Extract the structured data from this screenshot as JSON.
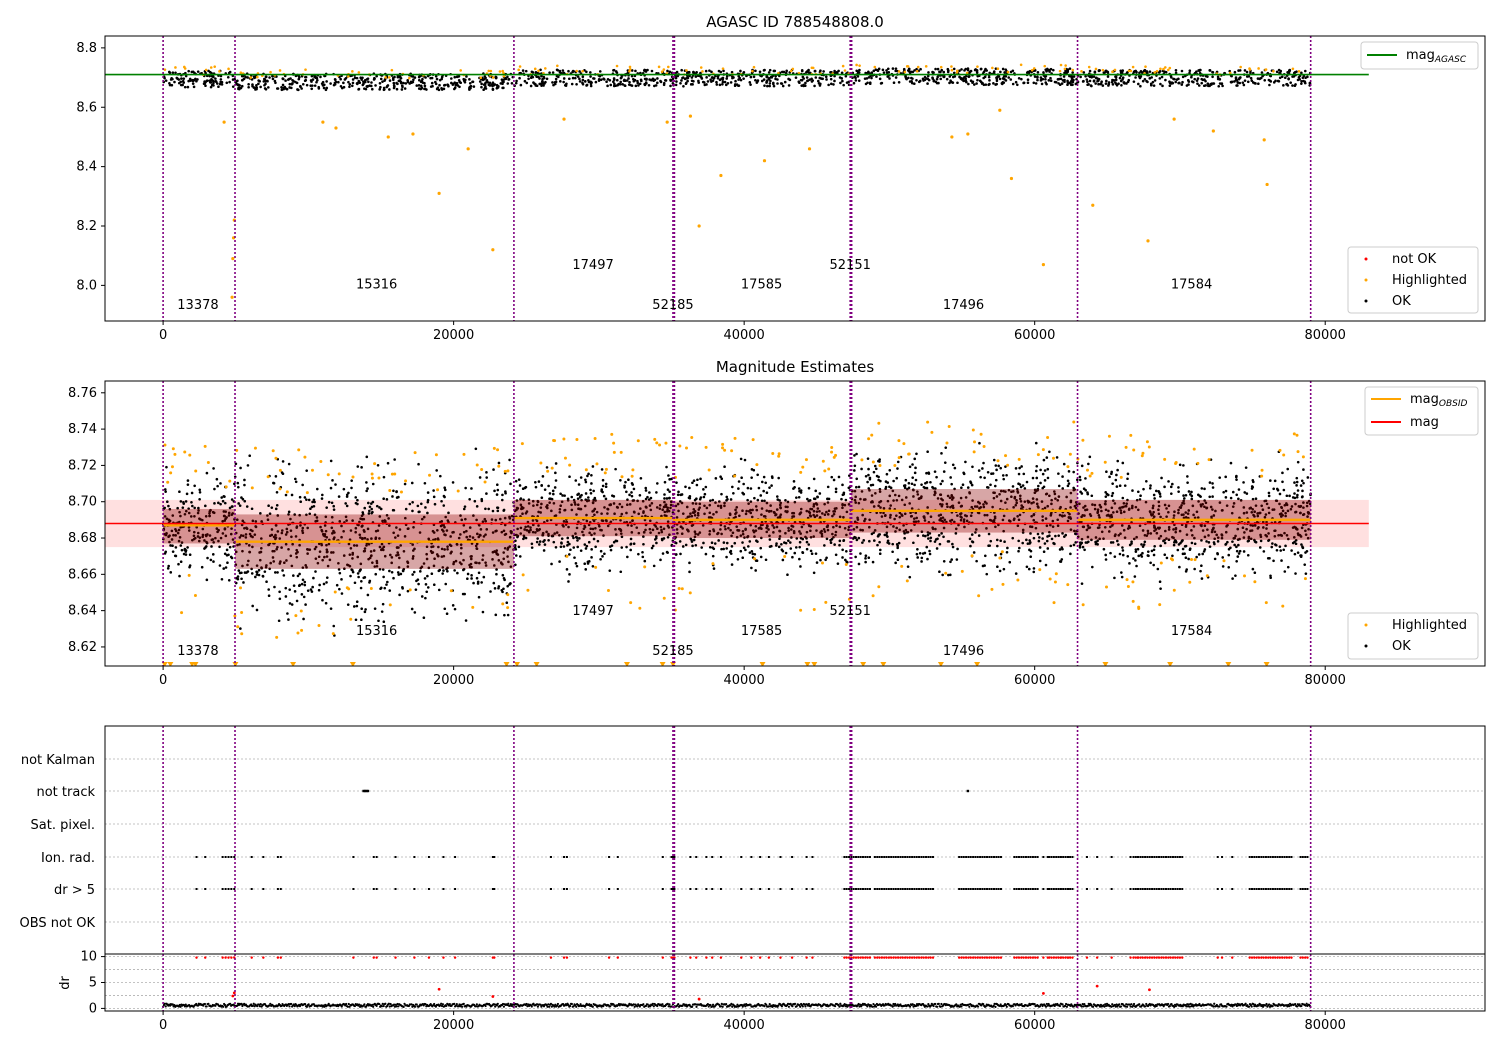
{
  "chart_data": [
    {
      "type": "scatter",
      "title": "AGASC ID 788548808.0",
      "xlim": [
        -4000,
        91000
      ],
      "ylim": [
        7.88,
        8.84
      ],
      "xticks": [
        0,
        20000,
        40000,
        60000,
        80000
      ],
      "xtick_labels": [
        "0",
        "20000",
        "40000",
        "60000",
        "80000"
      ],
      "yticks": [
        8.0,
        8.2,
        8.4,
        8.6,
        8.8
      ],
      "ytick_labels": [
        "8.0",
        "8.2",
        "8.4",
        "8.6",
        "8.8"
      ],
      "reference_line": {
        "name": "mag",
        "subscript": "AGASC",
        "y": 8.71,
        "x_end": 83000,
        "color": "#008000"
      },
      "legend_lines": [
        {
          "name": "mag",
          "subscript": "AGASC",
          "color": "#008000"
        }
      ],
      "legend_points": [
        {
          "name": "not OK",
          "color": "#ff0000"
        },
        {
          "name": "Highlighted",
          "color": "#ffa500"
        },
        {
          "name": "OK",
          "color": "#000000"
        }
      ],
      "obsid_labels": [
        {
          "text": "13378",
          "x": 2400,
          "y": 7.92
        },
        {
          "text": "15316",
          "x": 14700,
          "y": 7.99
        },
        {
          "text": "17497",
          "x": 29600,
          "y": 8.055
        },
        {
          "text": "52185",
          "x": 35100,
          "y": 7.92
        },
        {
          "text": "17585",
          "x": 41200,
          "y": 7.99
        },
        {
          "text": "52151",
          "x": 47300,
          "y": 8.055
        },
        {
          "text": "17496",
          "x": 55100,
          "y": 7.92
        },
        {
          "text": "17584",
          "x": 70800,
          "y": 7.99
        }
      ],
      "highlighted_outliers": [
        {
          "x": 4900,
          "y": 8.22
        },
        {
          "x": 4850,
          "y": 8.16
        },
        {
          "x": 4800,
          "y": 8.09
        },
        {
          "x": 4750,
          "y": 7.96
        },
        {
          "x": 4200,
          "y": 8.55
        },
        {
          "x": 11000,
          "y": 8.55
        },
        {
          "x": 11900,
          "y": 8.53
        },
        {
          "x": 15500,
          "y": 8.5
        },
        {
          "x": 17200,
          "y": 8.51
        },
        {
          "x": 19000,
          "y": 8.31
        },
        {
          "x": 21000,
          "y": 8.46
        },
        {
          "x": 22700,
          "y": 8.12
        },
        {
          "x": 27600,
          "y": 8.56
        },
        {
          "x": 34700,
          "y": 8.55
        },
        {
          "x": 36300,
          "y": 8.57
        },
        {
          "x": 36900,
          "y": 8.2
        },
        {
          "x": 38400,
          "y": 8.37
        },
        {
          "x": 41400,
          "y": 8.42
        },
        {
          "x": 44500,
          "y": 8.46
        },
        {
          "x": 54300,
          "y": 8.5
        },
        {
          "x": 55400,
          "y": 8.51
        },
        {
          "x": 57600,
          "y": 8.59
        },
        {
          "x": 58400,
          "y": 8.36
        },
        {
          "x": 60600,
          "y": 8.07
        },
        {
          "x": 64000,
          "y": 8.27
        },
        {
          "x": 67800,
          "y": 8.15
        },
        {
          "x": 69600,
          "y": 8.56
        },
        {
          "x": 72300,
          "y": 8.52
        },
        {
          "x": 75800,
          "y": 8.49
        },
        {
          "x": 76000,
          "y": 8.34
        }
      ]
    },
    {
      "type": "scatter",
      "title": "Magnitude Estimates",
      "xlim": [
        -4000,
        91000
      ],
      "ylim": [
        8.6095,
        8.7665
      ],
      "xticks": [
        0,
        20000,
        40000,
        60000,
        80000
      ],
      "xtick_labels": [
        "0",
        "20000",
        "40000",
        "60000",
        "80000"
      ],
      "yticks": [
        8.62,
        8.64,
        8.66,
        8.68,
        8.7,
        8.72,
        8.74,
        8.76
      ],
      "ytick_labels": [
        "8.62",
        "8.64",
        "8.66",
        "8.68",
        "8.70",
        "8.72",
        "8.74",
        "8.76"
      ],
      "overall_mag": {
        "name": "mag",
        "y": 8.688,
        "band": [
          8.675,
          8.701
        ],
        "x_end": 83000,
        "color": "#ff0000"
      },
      "obsid_segments": [
        {
          "x0": 0,
          "x1": 4950,
          "mean": 8.687,
          "band": [
            8.677,
            8.696
          ]
        },
        {
          "x0": 4950,
          "x1": 24150,
          "mean": 8.678,
          "band": [
            8.663,
            8.693
          ]
        },
        {
          "x0": 24150,
          "x1": 35100,
          "mean": 8.691,
          "band": [
            8.681,
            8.701
          ]
        },
        {
          "x0": 35100,
          "x1": 47350,
          "mean": 8.69,
          "band": [
            8.68,
            8.7
          ]
        },
        {
          "x0": 47350,
          "x1": 62950,
          "mean": 8.695,
          "band": [
            8.683,
            8.707
          ]
        },
        {
          "x0": 62950,
          "x1": 79000,
          "mean": 8.69,
          "band": [
            8.679,
            8.701
          ]
        }
      ],
      "legend_lines": [
        {
          "name": "mag",
          "subscript": "OBSID",
          "color": "#ffa500"
        },
        {
          "name": "mag",
          "subscript": "",
          "color": "#ff0000"
        }
      ],
      "legend_points": [
        {
          "name": "Highlighted",
          "color": "#ffa500"
        },
        {
          "name": "OK",
          "color": "#000000"
        }
      ],
      "obsid_labels": [
        {
          "text": "13378",
          "x": 2400,
          "y": 8.6155
        },
        {
          "text": "15316",
          "x": 14700,
          "y": 8.6265
        },
        {
          "text": "17497",
          "x": 29600,
          "y": 8.6375
        },
        {
          "text": "52185",
          "x": 35100,
          "y": 8.6155
        },
        {
          "text": "17585",
          "x": 41200,
          "y": 8.6265
        },
        {
          "text": "52151",
          "x": 47300,
          "y": 8.6375
        },
        {
          "text": "17496",
          "x": 55100,
          "y": 8.6155
        },
        {
          "text": "17584",
          "x": 70800,
          "y": 8.6265
        }
      ]
    },
    {
      "type": "scatter",
      "title": "",
      "xlim": [
        -4000,
        91000
      ],
      "flag_rows": [
        "not Kalman",
        "not track",
        "Sat. pixel.",
        "Ion. rad.",
        "dr > 5",
        "OBS not OK"
      ],
      "dr_ylim": [
        -0.5,
        10.5
      ],
      "dr_yticks": [
        0,
        5,
        10
      ],
      "dr_ytick_labels": [
        "0",
        "5",
        "10"
      ],
      "dr_ylabel": "dr",
      "xticks": [
        0,
        20000,
        40000,
        60000,
        80000
      ],
      "xtick_labels": [
        "0",
        "20000",
        "40000",
        "60000",
        "80000"
      ],
      "not_track_x": [
        13800,
        13900,
        14000,
        14100,
        55400
      ],
      "sparse_flag_x": [
        2300,
        2900,
        4100,
        4300,
        4500,
        4700,
        4900,
        6100,
        6900,
        7900,
        8100,
        13100,
        14500,
        14700,
        16000,
        17300,
        18300,
        19300,
        20100,
        22700,
        22800,
        26700,
        27600,
        27800,
        30700,
        31300,
        34400,
        35000,
        35100,
        35200,
        36300,
        36700,
        37400,
        37800,
        38400,
        39800,
        40500,
        41100,
        41700,
        42500,
        43300,
        44300,
        44700,
        60600,
        60900,
        61800,
        62300,
        63600,
        64300,
        65300,
        66600,
        67100,
        72600,
        72900,
        73600
      ],
      "dense_flag_ranges": [
        [
          46900,
          48700
        ],
        [
          49000,
          53000
        ],
        [
          54800,
          57800
        ],
        [
          58600,
          60200
        ],
        [
          61000,
          62600
        ],
        [
          66800,
          70200
        ],
        [
          74800,
          77800
        ],
        [
          78300,
          78900
        ]
      ],
      "dr_outliers": [
        {
          "x": 4800,
          "y": 2.4
        },
        {
          "x": 4900,
          "y": 3.0
        },
        {
          "x": 19000,
          "y": 3.7
        },
        {
          "x": 22700,
          "y": 2.3
        },
        {
          "x": 36900,
          "y": 1.8
        },
        {
          "x": 60600,
          "y": 2.9
        },
        {
          "x": 64300,
          "y": 4.3
        },
        {
          "x": 67900,
          "y": 3.6
        }
      ]
    }
  ],
  "obsid_boundaries_x": [
    0,
    4950,
    24150,
    35100,
    35200,
    47300,
    47400,
    62950,
    79000
  ]
}
